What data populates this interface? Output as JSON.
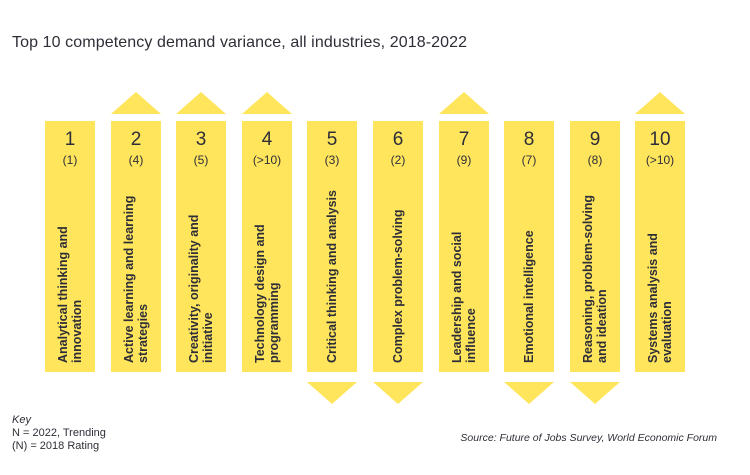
{
  "title": "Top 10 competency demand variance, all industries, 2018-2022",
  "colors": {
    "bar": "#ffe55c",
    "text": "#2e2e38"
  },
  "competencies": [
    {
      "rank": "1",
      "prev": "(1)",
      "label": "Analytical thinking and innovation",
      "trend": "none"
    },
    {
      "rank": "2",
      "prev": "(4)",
      "label": "Active learning and learning strategies",
      "trend": "up"
    },
    {
      "rank": "3",
      "prev": "(5)",
      "label": "Creativity, originality and initiative",
      "trend": "up"
    },
    {
      "rank": "4",
      "prev": "(>10)",
      "label": "Technology design and programming",
      "trend": "up"
    },
    {
      "rank": "5",
      "prev": "(3)",
      "label": "Critical thinking and analysis",
      "trend": "down"
    },
    {
      "rank": "6",
      "prev": "(2)",
      "label": "Complex problem-solving",
      "trend": "down"
    },
    {
      "rank": "7",
      "prev": "(9)",
      "label": "Leadership and social influence",
      "trend": "up"
    },
    {
      "rank": "8",
      "prev": "(7)",
      "label": "Emotional intelligence",
      "trend": "down"
    },
    {
      "rank": "9",
      "prev": "(8)",
      "label": "Reasoning, problem-solving and ideation",
      "trend": "down"
    },
    {
      "rank": "10",
      "prev": "(>10)",
      "label": "Systems analysis and evaluation",
      "trend": "up"
    }
  ],
  "key": {
    "title": "Key",
    "line1": "N = 2022, Trending",
    "line2": "(N) = 2018 Rating"
  },
  "source": "Source: Future of Jobs Survey, World Economic Forum"
}
